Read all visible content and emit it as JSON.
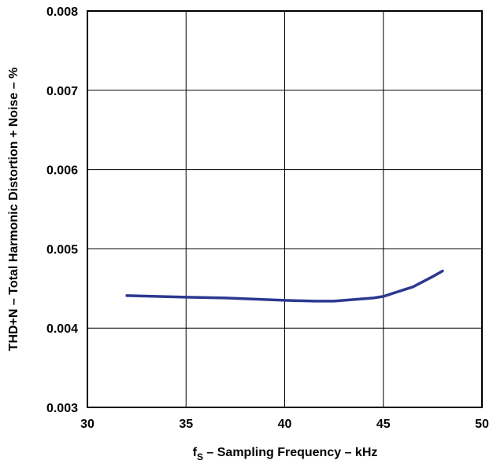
{
  "chart_data": {
    "type": "line",
    "xlabel": {
      "prefix": "f",
      "subscript": "S",
      "rest": " – Sampling Frequency – kHz"
    },
    "ylabel": "THD+N – Total Harmonic Distortion + Noise – %",
    "xlim": [
      30,
      50
    ],
    "ylim": [
      0.003,
      0.008
    ],
    "xticks": [
      "30",
      "35",
      "40",
      "45",
      "50"
    ],
    "yticks": [
      "0.003",
      "0.004",
      "0.005",
      "0.006",
      "0.007",
      "0.008"
    ],
    "grid": true,
    "line_color": "#2b3990",
    "series": [
      {
        "x": [
          32,
          33.5,
          35,
          37,
          39,
          40,
          41.5,
          42.5,
          43.5,
          44.5,
          45,
          45.5,
          46.5,
          47.5,
          48
        ],
        "y": [
          0.00441,
          0.0044,
          0.00439,
          0.00438,
          0.00436,
          0.00435,
          0.00434,
          0.00434,
          0.00436,
          0.00438,
          0.0044,
          0.00444,
          0.00452,
          0.00465,
          0.00472
        ]
      }
    ]
  }
}
